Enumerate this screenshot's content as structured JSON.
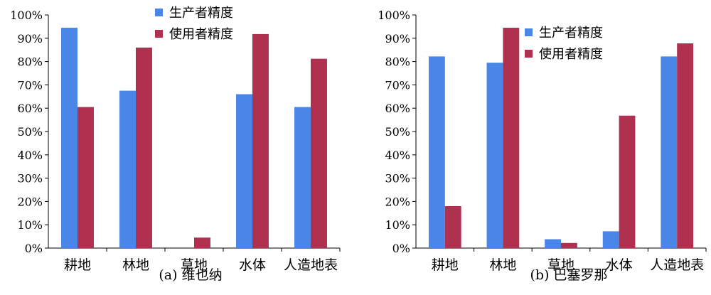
{
  "colors": {
    "producer": "#4A86E8",
    "user": "#B03050"
  },
  "chart_data": [
    {
      "type": "bar",
      "caption": "(a) 维也纳",
      "categories": [
        "耕地",
        "林地",
        "草地",
        "水体",
        "人造地表"
      ],
      "series": [
        {
          "name": "生产者精度",
          "values": [
            94.5,
            67.5,
            0,
            66,
            60.5
          ]
        },
        {
          "name": "使用者精度",
          "values": [
            60.5,
            86,
            4.5,
            91.8,
            81.2
          ]
        }
      ],
      "yticks": [
        "0%",
        "10%",
        "20%",
        "30%",
        "40%",
        "50%",
        "60%",
        "70%",
        "80%",
        "90%",
        "100%"
      ],
      "ylim": [
        0,
        100
      ],
      "legend": "top-center"
    },
    {
      "type": "bar",
      "caption": "(b) 巴塞罗那",
      "categories": [
        "耕地",
        "林地",
        "草地",
        "水体",
        "人造地表"
      ],
      "series": [
        {
          "name": "生产者精度",
          "values": [
            82.2,
            79.5,
            3.8,
            7.2,
            82.2
          ]
        },
        {
          "name": "使用者精度",
          "values": [
            18,
            94.5,
            2.2,
            56.8,
            87.8
          ]
        }
      ],
      "yticks": [
        "0%",
        "10%",
        "20%",
        "30%",
        "40%",
        "50%",
        "60%",
        "70%",
        "80%",
        "90%",
        "100%"
      ],
      "ylim": [
        0,
        100
      ],
      "legend": "top-center"
    }
  ]
}
